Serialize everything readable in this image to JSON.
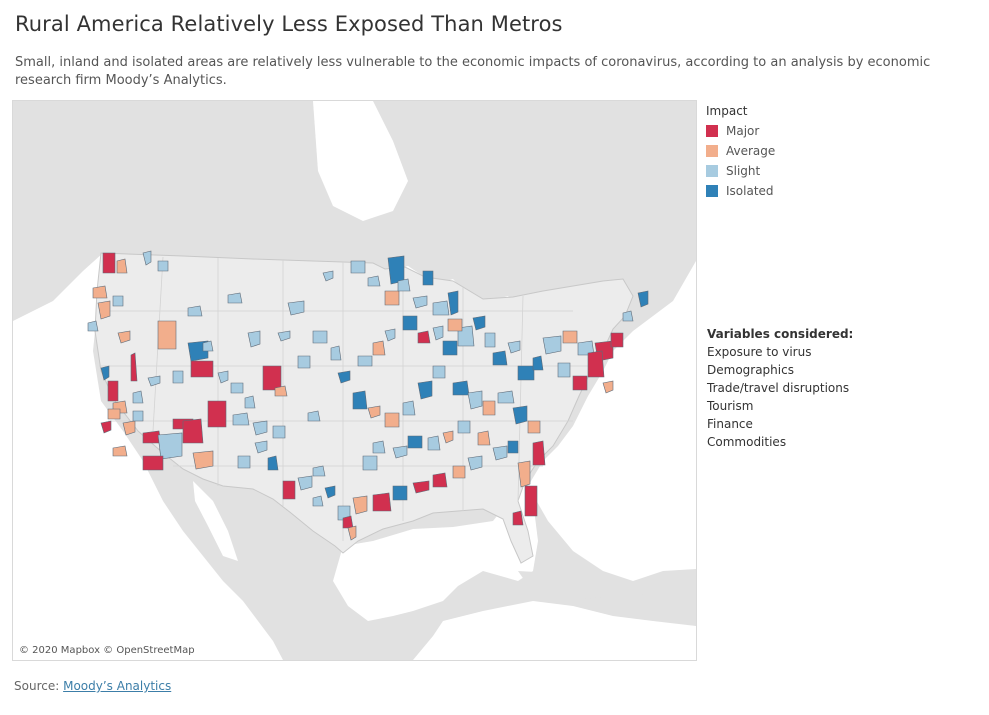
{
  "title": "Rural America Relatively Less Exposed Than Metros",
  "subtitle": "Small, inland and isolated areas are relatively less vulnerable to the economic impacts of coronavirus, according to an analysis by economic research firm Moody’s Analytics.",
  "map": {
    "attribution": "© 2020 Mapbox © OpenStreetMap",
    "colors": {
      "ocean": "#ffffff",
      "land": "#e1e1e1",
      "us": "#ececec",
      "border": "#c8c8c8"
    }
  },
  "legend": {
    "title": "Impact",
    "items": [
      {
        "label": "Major",
        "color": "#d1304f"
      },
      {
        "label": "Average",
        "color": "#f2ae8c"
      },
      {
        "label": "Slight",
        "color": "#a7cbe0"
      },
      {
        "label": "Isolated",
        "color": "#2f81b7"
      }
    ]
  },
  "variables": {
    "title": "Variables considered:",
    "items": [
      "Exposure to virus",
      "Demographics",
      "Trade/travel disruptions",
      "Tourism",
      "Finance",
      "Commodities"
    ]
  },
  "source": {
    "label": "Source:",
    "link_text": "Moody’s Analytics"
  }
}
